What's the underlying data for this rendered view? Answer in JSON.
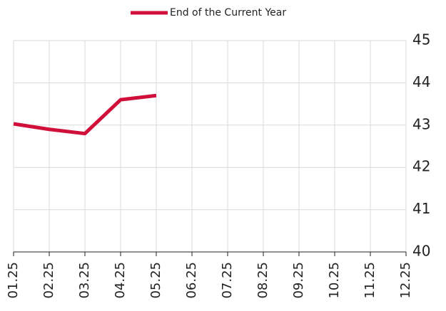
{
  "chart_data": {
    "type": "line",
    "categories": [
      "01.25",
      "02.25",
      "03.25",
      "04.25",
      "05.25",
      "06.25",
      "07.25",
      "08.25",
      "09.25",
      "10.25",
      "11.25",
      "12.25"
    ],
    "series": [
      {
        "name": "End of the Current Year",
        "color": "#d0103a",
        "values": [
          43.03,
          42.9,
          42.8,
          43.6,
          43.7,
          null,
          null,
          null,
          null,
          null,
          null,
          null
        ]
      }
    ],
    "ylim": [
      40,
      45
    ],
    "yticks": [
      40,
      41,
      42,
      43,
      44,
      45
    ],
    "grid": true,
    "legend": "top"
  }
}
